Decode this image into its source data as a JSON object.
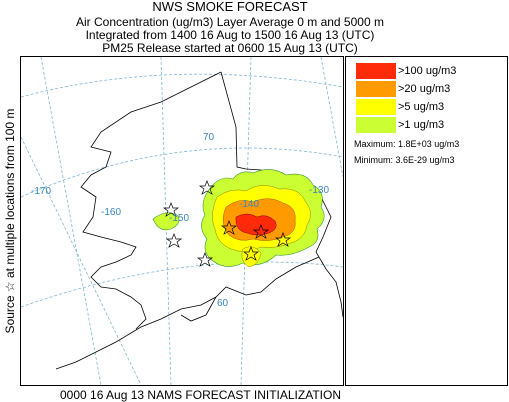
{
  "header": {
    "title": "NWS SMOKE FORECAST",
    "line2": "Air Concentration (ug/m3) Layer Average    0 m and  5000 m",
    "line3": "Integrated from 1400 16 Aug to 1500 16 Aug 13 (UTC)",
    "line4": "PM25 Release started at 0600 15 Aug 13 (UTC)"
  },
  "side_label": "Source ☆     at multiple locations    from   100 m",
  "map": {
    "longitude_labels": [
      "-170",
      "-160",
      "-150",
      "-140",
      "-130"
    ],
    "latitude_labels": [
      "70",
      "60"
    ]
  },
  "legend": {
    "items": [
      {
        "label": ">100 ug/m3",
        "color": "#ff2a0a"
      },
      {
        "label": ">20 ug/m3",
        "color": "#ff9a00"
      },
      {
        "label": ">5 ug/m3",
        "color": "#ffff00"
      },
      {
        "label": ">1 ug/m3",
        "color": "#ccff33"
      }
    ],
    "maximum": "Maximum: 1.8E+03 ug/m3",
    "minimum": "Minimum: 3.6E-29 ug/m3"
  },
  "footer": "0000 16 Aug 13 NAMS FORECAST INITIALIZATION"
}
